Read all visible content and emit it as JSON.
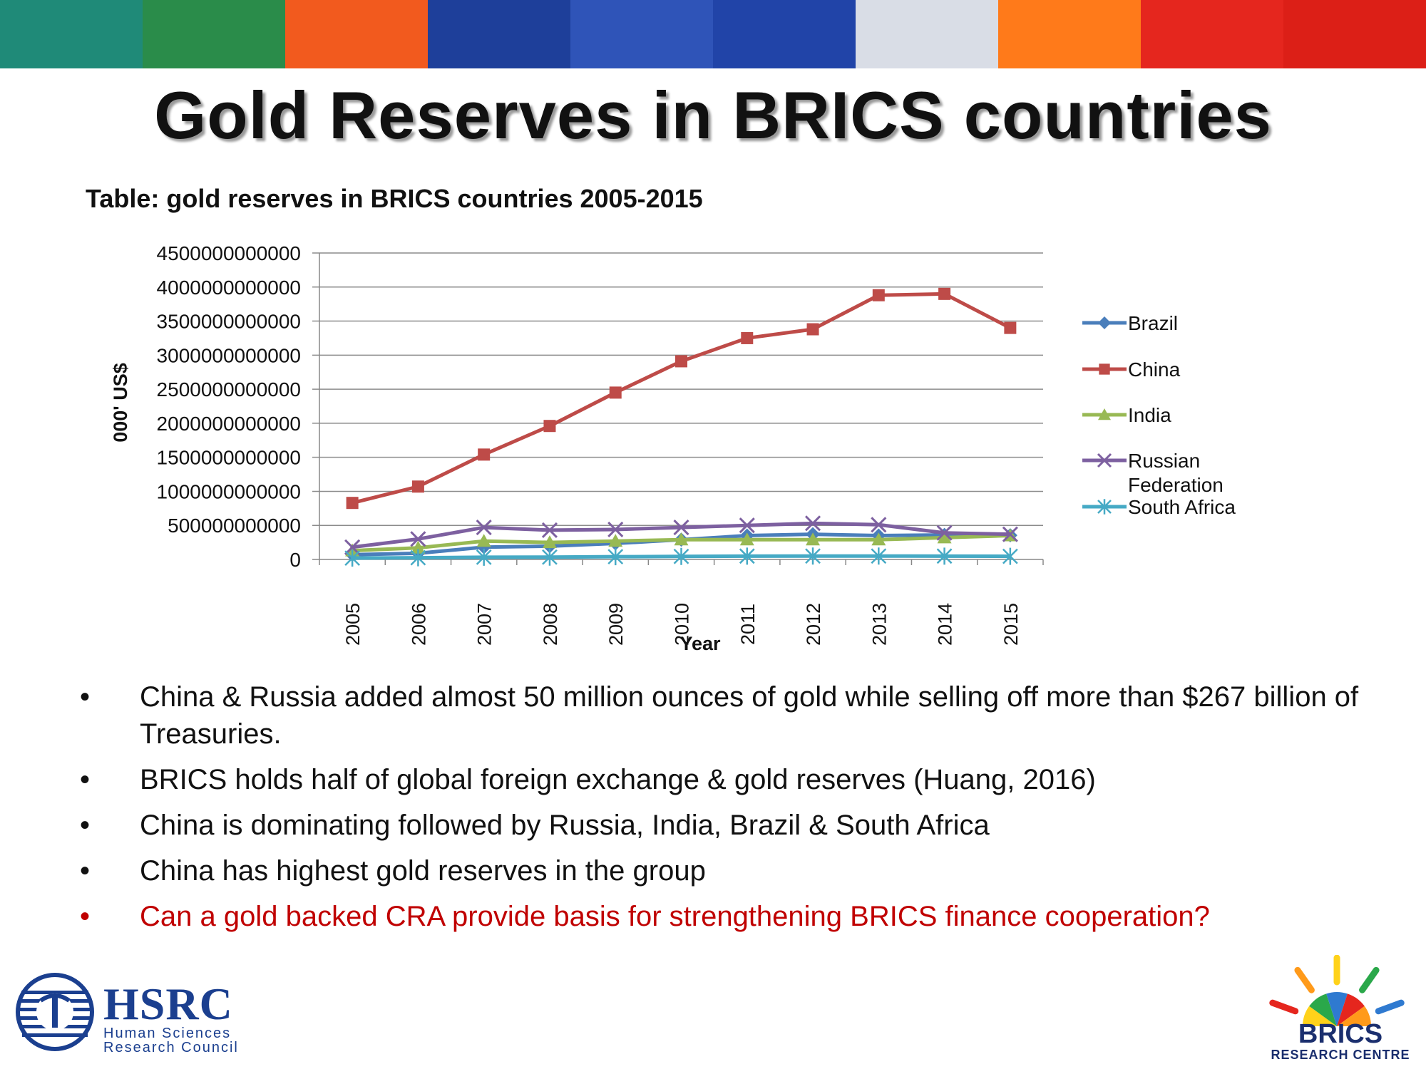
{
  "title": "Gold Reserves in BRICS countries",
  "subtitle": "Table: gold reserves in BRICS countries 2005-2015",
  "banner_colors": [
    "#1f8a78",
    "#2a8c4a",
    "#f25a1e",
    "#1e3f9a",
    "#2f54b8",
    "#2144a8",
    "#d9dde6",
    "#ff7a1a",
    "#e5261e",
    "#dc1f17"
  ],
  "chart_data": {
    "type": "line",
    "title": "",
    "xlabel": "Year",
    "ylabel": "000' US$",
    "ylim": [
      0,
      4500000000000
    ],
    "yticks": [
      0,
      500000000000,
      1000000000000,
      1500000000000,
      2000000000000,
      2500000000000,
      3000000000000,
      3500000000000,
      4000000000000,
      4500000000000
    ],
    "x": [
      "2005",
      "2006",
      "2007",
      "2008",
      "2009",
      "2010",
      "2011",
      "2012",
      "2013",
      "2014",
      "2015"
    ],
    "grid": true,
    "legend": "right",
    "series": [
      {
        "name": "Brazil",
        "color": "#4a7ebb",
        "marker": "diamond",
        "values": [
          70000000000,
          90000000000,
          180000000000,
          195000000000,
          235000000000,
          290000000000,
          350000000000,
          370000000000,
          350000000000,
          360000000000,
          355000000000
        ]
      },
      {
        "name": "China",
        "color": "#be4b48",
        "marker": "square",
        "values": [
          830000000000,
          1070000000000,
          1540000000000,
          1960000000000,
          2450000000000,
          2910000000000,
          3250000000000,
          3380000000000,
          3880000000000,
          3900000000000,
          3400000000000
        ]
      },
      {
        "name": "India",
        "color": "#98b954",
        "marker": "triangle",
        "values": [
          130000000000,
          170000000000,
          270000000000,
          250000000000,
          270000000000,
          290000000000,
          290000000000,
          290000000000,
          290000000000,
          320000000000,
          350000000000
        ]
      },
      {
        "name": "Russian Federation",
        "color": "#7d60a0",
        "marker": "x",
        "values": [
          180000000000,
          300000000000,
          470000000000,
          430000000000,
          440000000000,
          470000000000,
          500000000000,
          530000000000,
          510000000000,
          390000000000,
          370000000000
        ]
      },
      {
        "name": "South Africa",
        "color": "#46aac5",
        "marker": "asterisk",
        "values": [
          20000000000,
          25000000000,
          33000000000,
          34000000000,
          40000000000,
          44000000000,
          49000000000,
          50000000000,
          50000000000,
          49000000000,
          46000000000
        ]
      }
    ]
  },
  "bullets": [
    {
      "text": "China & Russia added almost 50 million ounces of gold while selling off more than $267 billion of Treasuries.",
      "highlight": false
    },
    {
      "text": "BRICS holds half of global foreign exchange & gold reserves (Huang, 2016)",
      "highlight": false
    },
    {
      "text": "China is dominating followed by Russia, India, Brazil & South Africa",
      "highlight": false
    },
    {
      "text": "China has highest gold reserves in the group",
      "highlight": false
    },
    {
      "text": "Can a gold backed CRA provide basis for strengthening BRICS finance cooperation?",
      "highlight": true
    }
  ],
  "bullet_symbol": "•",
  "logos": {
    "hsrc": {
      "name": "HSRC",
      "line1": "Human Sciences",
      "line2": "Research Council",
      "color": "#1b3f8f"
    },
    "brics": {
      "name": "BRICS",
      "sub": "RESEARCH CENTRE",
      "color": "#1b2f6e",
      "ray_colors": [
        "#e5261e",
        "#ff9a1a",
        "#ffd21a",
        "#2aa84a",
        "#2f7ad0"
      ]
    }
  }
}
